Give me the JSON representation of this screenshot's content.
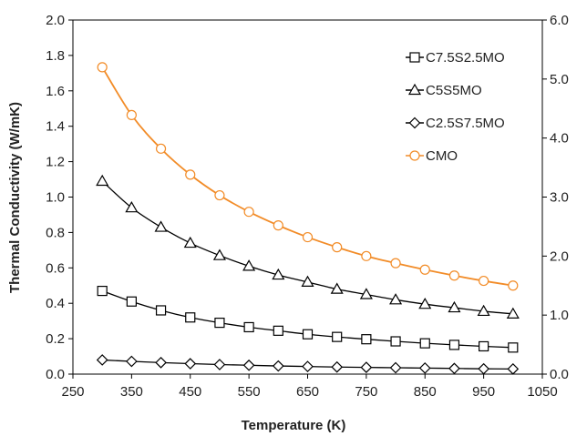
{
  "chart_data": {
    "type": "line",
    "title": "",
    "xlabel": "Temperature (K)",
    "ylabel": "Thermal Conductivity (W/mK)",
    "xlim": [
      250,
      1050
    ],
    "ylim": [
      0,
      2.0
    ],
    "y2lim": [
      0,
      6.0
    ],
    "xticks": [
      "250",
      "350",
      "450",
      "550",
      "650",
      "750",
      "850",
      "950",
      "1050"
    ],
    "yticks": [
      "0.0",
      "0.2",
      "0.4",
      "0.6",
      "0.8",
      "1.0",
      "1.2",
      "1.4",
      "1.6",
      "1.8",
      "2.0"
    ],
    "y2ticks": [
      "0.0",
      "1.0",
      "2.0",
      "3.0",
      "4.0",
      "5.0",
      "6.0"
    ],
    "grid": false,
    "legend_position": "top-right",
    "x": [
      300,
      350,
      400,
      450,
      500,
      550,
      600,
      650,
      700,
      750,
      800,
      850,
      900,
      950,
      1000
    ],
    "series": [
      {
        "name": "C7.5S2.5MO",
        "marker": "square",
        "color": "#000000",
        "axis": "left",
        "values": [
          0.47,
          0.41,
          0.36,
          0.32,
          0.29,
          0.265,
          0.245,
          0.225,
          0.21,
          0.197,
          0.185,
          0.174,
          0.165,
          0.157,
          0.15
        ]
      },
      {
        "name": "C5S5MO",
        "marker": "triangle",
        "color": "#000000",
        "axis": "left",
        "values": [
          1.09,
          0.94,
          0.83,
          0.74,
          0.67,
          0.61,
          0.56,
          0.52,
          0.48,
          0.45,
          0.42,
          0.395,
          0.375,
          0.355,
          0.34
        ]
      },
      {
        "name": "C2.5S7.5MO",
        "marker": "diamond",
        "color": "#000000",
        "axis": "left",
        "values": [
          0.08,
          0.072,
          0.065,
          0.059,
          0.054,
          0.05,
          0.046,
          0.043,
          0.04,
          0.038,
          0.036,
          0.034,
          0.032,
          0.03,
          0.029
        ]
      },
      {
        "name": "CMO",
        "marker": "circle",
        "color": "#f28c28",
        "axis": "right",
        "values": [
          5.2,
          4.39,
          3.82,
          3.38,
          3.03,
          2.75,
          2.52,
          2.32,
          2.15,
          2.0,
          1.88,
          1.77,
          1.67,
          1.58,
          1.5
        ]
      }
    ]
  }
}
